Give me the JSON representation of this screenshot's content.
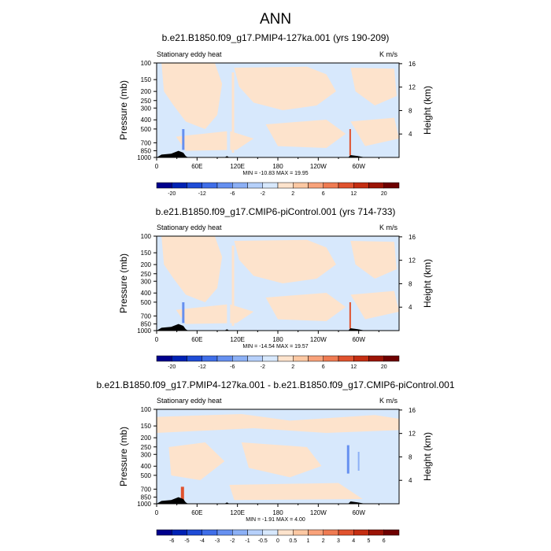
{
  "page_title": "ANN",
  "chart_data": [
    {
      "type": "heatmap",
      "title": "b.e21.B1850.f09_g17.PMIP4-127ka.001 (yrs 190-209)",
      "variable_label": "Stationary eddy heat",
      "units": "K m/s",
      "ylabel": "Pressure (mb)",
      "ylabel_right": "Height (km)",
      "x_ticks": [
        "0",
        "60E",
        "120E",
        "180",
        "120W",
        "60W"
      ],
      "y_ticks": [
        "100",
        "150",
        "200",
        "250",
        "300",
        "400",
        "500",
        "700",
        "850",
        "1000"
      ],
      "y_right_ticks": [
        "16",
        "12",
        "8",
        "4"
      ],
      "stats": "MIN = -10.83  MAX =  19.95",
      "colorbar": {
        "labels": [
          "-20",
          "-12",
          "-6",
          "-2",
          "2",
          "6",
          "12",
          "20"
        ],
        "colors": [
          "#00008c",
          "#0022b4",
          "#1f4cd6",
          "#3f6ee8",
          "#6690f0",
          "#8cb0f5",
          "#b6d0fa",
          "#d7e8fc",
          "#fde3cc",
          "#fcc8a3",
          "#f8a27a",
          "#ef7b52",
          "#e0522e",
          "#c42e12",
          "#9c1406",
          "#6e0000"
        ]
      }
    },
    {
      "type": "heatmap",
      "title": "b.e21.B1850.f09_g17.CMIP6-piControl.001 (yrs 714-733)",
      "variable_label": "Stationary eddy heat",
      "units": "K m/s",
      "ylabel": "Pressure (mb)",
      "ylabel_right": "Height (km)",
      "x_ticks": [
        "0",
        "60E",
        "120E",
        "180",
        "120W",
        "60W"
      ],
      "y_ticks": [
        "100",
        "150",
        "200",
        "250",
        "300",
        "400",
        "500",
        "700",
        "850",
        "1000"
      ],
      "y_right_ticks": [
        "16",
        "12",
        "8",
        "4"
      ],
      "stats": "MIN = -14.54  MAX =  19.57",
      "colorbar": {
        "labels": [
          "-20",
          "-12",
          "-6",
          "-2",
          "2",
          "6",
          "12",
          "20"
        ],
        "colors": [
          "#00008c",
          "#0022b4",
          "#1f4cd6",
          "#3f6ee8",
          "#6690f0",
          "#8cb0f5",
          "#b6d0fa",
          "#d7e8fc",
          "#fde3cc",
          "#fcc8a3",
          "#f8a27a",
          "#ef7b52",
          "#e0522e",
          "#c42e12",
          "#9c1406",
          "#6e0000"
        ]
      }
    },
    {
      "type": "heatmap",
      "title": "b.e21.B1850.f09_g17.PMIP4-127ka.001 - b.e21.B1850.f09_g17.CMIP6-piControl.001",
      "variable_label": "Stationary eddy heat",
      "units": "K m/s",
      "ylabel": "Pressure (mb)",
      "ylabel_right": "Height (km)",
      "x_ticks": [
        "0",
        "60E",
        "120E",
        "180",
        "120W",
        "60W"
      ],
      "y_ticks": [
        "100",
        "150",
        "200",
        "250",
        "300",
        "400",
        "500",
        "700",
        "850",
        "1000"
      ],
      "y_right_ticks": [
        "16",
        "12",
        "8",
        "4"
      ],
      "stats": "MIN = -1.91  MAX =  4.00",
      "colorbar": {
        "labels": [
          "-6",
          "-5",
          "-4",
          "-3",
          "-2",
          "-1",
          "-0.5",
          "0",
          "0.5",
          "1",
          "2",
          "3",
          "4",
          "5",
          "6"
        ],
        "colors": [
          "#00008c",
          "#0022b4",
          "#1f4cd6",
          "#3f6ee8",
          "#6690f0",
          "#8cb0f5",
          "#b6d0fa",
          "#d7e8fc",
          "#fde3cc",
          "#fcc8a3",
          "#f8a27a",
          "#ef7b52",
          "#e0522e",
          "#c42e12",
          "#9c1406",
          "#6e0000"
        ]
      }
    }
  ]
}
